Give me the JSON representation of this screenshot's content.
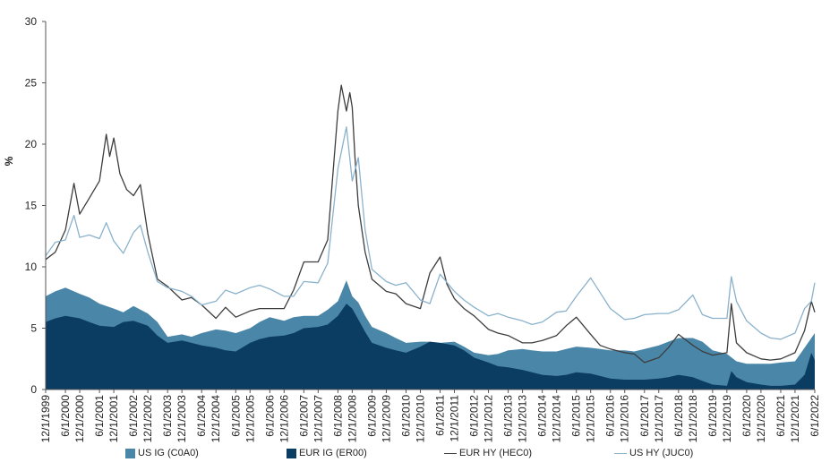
{
  "chart_data": {
    "type": "area",
    "ylabel": "%",
    "ylim": [
      0,
      30
    ],
    "yticks": [
      "0",
      "5",
      "10",
      "15",
      "20",
      "25",
      "30"
    ],
    "xticks": [
      "12/1/1999",
      "6/1/2000",
      "12/1/2000",
      "6/1/2001",
      "12/1/2001",
      "6/1/2002",
      "12/1/2002",
      "6/1/2003",
      "12/1/2003",
      "6/1/2004",
      "12/1/2004",
      "6/1/2005",
      "12/1/2005",
      "6/1/2006",
      "12/1/2006",
      "6/1/2007",
      "12/1/2007",
      "6/1/2008",
      "12/1/2008",
      "6/1/2009",
      "12/1/2009",
      "6/1/2010",
      "12/1/2010",
      "6/1/2011",
      "12/1/2011",
      "6/1/2012",
      "12/1/2012",
      "6/1/2013",
      "12/1/2013",
      "6/1/2014",
      "12/1/2014",
      "6/1/2015",
      "12/1/2015",
      "6/1/2016",
      "12/1/2016",
      "6/1/2017",
      "12/1/2017",
      "6/1/2018",
      "12/1/2018",
      "6/1/2019",
      "12/1/2019",
      "6/1/2020",
      "12/1/2020",
      "6/1/2021",
      "12/1/2021",
      "6/1/2022"
    ],
    "x": [
      1999.92,
      2000.5,
      2000.92,
      2001.5,
      2001.92,
      2002.5,
      2002.92,
      2003.5,
      2003.92,
      2004.5,
      2004.92,
      2005.5,
      2005.92,
      2006.5,
      2006.92,
      2007.5,
      2007.92,
      2008.5,
      2008.92,
      2009.5,
      2009.92,
      2010.5,
      2010.92,
      2011.5,
      2011.92,
      2012.5,
      2012.92,
      2013.5,
      2013.92,
      2014.5,
      2014.92,
      2015.5,
      2015.92,
      2016.5,
      2016.92,
      2017.5,
      2017.92,
      2018.5,
      2018.92,
      2019.5,
      2019.92,
      2020.5,
      2020.92,
      2021.5,
      2021.92,
      2022.5
    ],
    "legend_position": "bottom",
    "series": [
      {
        "name": "US IG (C0A0)",
        "style": "area",
        "color": "#4a86a8",
        "x": [
          1999.92,
          2000.2,
          2000.5,
          2000.92,
          2001.2,
          2001.5,
          2001.92,
          2002.2,
          2002.5,
          2002.92,
          2003.2,
          2003.5,
          2003.92,
          2004.2,
          2004.5,
          2004.92,
          2005.2,
          2005.5,
          2005.92,
          2006.2,
          2006.5,
          2006.92,
          2007.2,
          2007.5,
          2007.92,
          2008.2,
          2008.5,
          2008.75,
          2008.92,
          2009.1,
          2009.3,
          2009.5,
          2009.92,
          2010.2,
          2010.5,
          2010.92,
          2011.2,
          2011.5,
          2011.92,
          2012.2,
          2012.5,
          2012.92,
          2013.2,
          2013.5,
          2013.92,
          2014.2,
          2014.5,
          2014.92,
          2015.2,
          2015.5,
          2015.92,
          2016.2,
          2016.5,
          2016.92,
          2017.2,
          2017.5,
          2017.92,
          2018.2,
          2018.5,
          2018.92,
          2019.2,
          2019.5,
          2019.92,
          2020.2,
          2020.5,
          2020.92,
          2021.2,
          2021.5,
          2021.92,
          2022.2,
          2022.5
        ],
        "values": [
          7.6,
          8.0,
          8.3,
          7.8,
          7.5,
          7.0,
          6.6,
          6.3,
          6.8,
          6.2,
          5.5,
          4.3,
          4.5,
          4.3,
          4.6,
          4.9,
          4.8,
          4.6,
          5.0,
          5.5,
          5.9,
          5.6,
          5.9,
          6.0,
          6.0,
          6.5,
          7.2,
          8.9,
          7.6,
          7.1,
          6.0,
          5.1,
          4.6,
          4.2,
          3.8,
          3.9,
          3.9,
          3.8,
          3.9,
          3.5,
          3.0,
          2.8,
          2.9,
          3.2,
          3.3,
          3.2,
          3.1,
          3.1,
          3.3,
          3.5,
          3.4,
          3.3,
          3.2,
          3.2,
          3.1,
          3.3,
          3.6,
          3.9,
          4.2,
          4.2,
          3.9,
          3.2,
          2.9,
          2.3,
          2.1,
          2.1,
          2.1,
          2.2,
          2.3,
          3.4,
          4.6
        ]
      },
      {
        "name": "EUR IG (ER00)",
        "style": "area",
        "color": "#0b3d63",
        "x": [
          1999.92,
          2000.2,
          2000.5,
          2000.92,
          2001.2,
          2001.5,
          2001.92,
          2002.2,
          2002.5,
          2002.92,
          2003.2,
          2003.5,
          2003.92,
          2004.2,
          2004.5,
          2004.92,
          2005.2,
          2005.5,
          2005.92,
          2006.2,
          2006.5,
          2006.92,
          2007.2,
          2007.5,
          2007.92,
          2008.2,
          2008.5,
          2008.75,
          2008.92,
          2009.1,
          2009.3,
          2009.5,
          2009.92,
          2010.2,
          2010.5,
          2010.92,
          2011.2,
          2011.5,
          2011.92,
          2012.2,
          2012.5,
          2012.92,
          2013.2,
          2013.5,
          2013.92,
          2014.2,
          2014.5,
          2014.92,
          2015.2,
          2015.5,
          2015.92,
          2016.2,
          2016.5,
          2016.92,
          2017.2,
          2017.5,
          2017.92,
          2018.2,
          2018.5,
          2018.92,
          2019.2,
          2019.5,
          2019.92,
          2020.05,
          2020.2,
          2020.5,
          2020.92,
          2021.2,
          2021.5,
          2021.92,
          2022.2,
          2022.4,
          2022.5
        ],
        "values": [
          5.5,
          5.8,
          6.0,
          5.8,
          5.5,
          5.2,
          5.1,
          5.5,
          5.6,
          5.2,
          4.4,
          3.8,
          4.0,
          3.8,
          3.6,
          3.4,
          3.2,
          3.1,
          3.8,
          4.1,
          4.3,
          4.4,
          4.6,
          5.0,
          5.1,
          5.3,
          6.0,
          7.0,
          6.6,
          5.7,
          4.7,
          3.8,
          3.4,
          3.2,
          3.0,
          3.5,
          3.9,
          3.8,
          3.6,
          3.2,
          2.6,
          2.2,
          1.9,
          1.8,
          1.6,
          1.4,
          1.2,
          1.1,
          1.2,
          1.4,
          1.3,
          1.1,
          0.9,
          0.8,
          0.8,
          0.8,
          0.9,
          1.0,
          1.2,
          1.0,
          0.7,
          0.4,
          0.3,
          1.5,
          1.0,
          0.6,
          0.4,
          0.3,
          0.3,
          0.4,
          1.2,
          3.0,
          2.4
        ]
      },
      {
        "name": "EUR HY (HEC0)",
        "style": "line",
        "color": "#3d3d3d",
        "x": [
          1999.92,
          2000.2,
          2000.5,
          2000.75,
          2000.92,
          2001.2,
          2001.5,
          2001.7,
          2001.8,
          2001.92,
          2002.1,
          2002.3,
          2002.5,
          2002.7,
          2002.92,
          2003.2,
          2003.5,
          2003.92,
          2004.2,
          2004.5,
          2004.92,
          2005.2,
          2005.5,
          2005.92,
          2006.2,
          2006.5,
          2006.92,
          2007.2,
          2007.5,
          2007.92,
          2008.2,
          2008.5,
          2008.6,
          2008.75,
          2008.85,
          2008.92,
          2009.0,
          2009.1,
          2009.3,
          2009.5,
          2009.92,
          2010.2,
          2010.5,
          2010.92,
          2011.2,
          2011.5,
          2011.7,
          2011.92,
          2012.2,
          2012.5,
          2012.92,
          2013.2,
          2013.5,
          2013.92,
          2014.2,
          2014.5,
          2014.92,
          2015.2,
          2015.5,
          2015.92,
          2016.2,
          2016.5,
          2016.92,
          2017.2,
          2017.5,
          2017.92,
          2018.2,
          2018.5,
          2018.92,
          2019.2,
          2019.5,
          2019.92,
          2020.05,
          2020.2,
          2020.5,
          2020.92,
          2021.2,
          2021.5,
          2021.92,
          2022.2,
          2022.4,
          2022.5
        ],
        "values": [
          10.6,
          11.2,
          13.0,
          16.8,
          14.3,
          15.6,
          17.0,
          20.8,
          19.0,
          20.5,
          17.6,
          16.3,
          15.8,
          16.7,
          12.7,
          9.0,
          8.4,
          7.3,
          7.5,
          6.9,
          5.8,
          6.7,
          5.9,
          6.4,
          6.6,
          6.6,
          6.6,
          8.1,
          10.4,
          10.4,
          12.2,
          22.7,
          24.8,
          22.7,
          24.2,
          23.0,
          19.0,
          15.0,
          11.2,
          9.0,
          8.0,
          7.8,
          7.0,
          6.6,
          9.5,
          10.8,
          8.6,
          7.4,
          6.6,
          6.0,
          4.9,
          4.6,
          4.4,
          3.8,
          3.8,
          4.0,
          4.4,
          5.2,
          5.9,
          4.5,
          3.6,
          3.3,
          3.0,
          2.9,
          2.2,
          2.6,
          3.4,
          4.5,
          3.6,
          3.1,
          2.8,
          3.0,
          7.0,
          3.8,
          3.0,
          2.5,
          2.4,
          2.5,
          3.0,
          4.8,
          7.2,
          6.3
        ]
      },
      {
        "name": "US HY (JUC0)",
        "style": "line",
        "color": "#8ab2cc",
        "x": [
          1999.92,
          2000.2,
          2000.5,
          2000.75,
          2000.92,
          2001.2,
          2001.5,
          2001.7,
          2001.92,
          2002.2,
          2002.5,
          2002.7,
          2002.92,
          2003.2,
          2003.5,
          2003.92,
          2004.2,
          2004.5,
          2004.92,
          2005.2,
          2005.5,
          2005.92,
          2006.2,
          2006.5,
          2006.92,
          2007.2,
          2007.5,
          2007.92,
          2008.2,
          2008.5,
          2008.75,
          2008.92,
          2009.1,
          2009.3,
          2009.5,
          2009.92,
          2010.2,
          2010.5,
          2010.92,
          2011.2,
          2011.5,
          2011.92,
          2012.2,
          2012.5,
          2012.92,
          2013.2,
          2013.5,
          2013.92,
          2014.2,
          2014.5,
          2014.92,
          2015.2,
          2015.5,
          2015.92,
          2016.2,
          2016.5,
          2016.92,
          2017.2,
          2017.5,
          2017.92,
          2018.2,
          2018.5,
          2018.92,
          2019.2,
          2019.5,
          2019.92,
          2020.05,
          2020.2,
          2020.5,
          2020.92,
          2021.2,
          2021.5,
          2021.92,
          2022.2,
          2022.4,
          2022.5
        ],
        "values": [
          10.9,
          12.0,
          12.2,
          14.2,
          12.4,
          12.6,
          12.3,
          13.6,
          12.1,
          11.1,
          12.8,
          13.4,
          11.2,
          8.8,
          8.3,
          8.0,
          7.6,
          6.9,
          7.2,
          8.1,
          7.8,
          8.3,
          8.5,
          8.2,
          7.6,
          7.6,
          8.8,
          8.7,
          10.3,
          18.0,
          21.4,
          17.0,
          18.9,
          13.0,
          9.8,
          8.8,
          8.5,
          8.7,
          7.3,
          7.0,
          9.4,
          8.0,
          7.3,
          6.7,
          6.0,
          6.2,
          5.9,
          5.6,
          5.3,
          5.5,
          6.3,
          6.4,
          7.6,
          9.1,
          7.9,
          6.6,
          5.7,
          5.8,
          6.1,
          6.2,
          6.2,
          6.5,
          7.7,
          6.1,
          5.8,
          5.8,
          9.2,
          7.2,
          5.6,
          4.6,
          4.2,
          4.1,
          4.6,
          6.6,
          7.2,
          8.7
        ]
      }
    ]
  },
  "legend": {
    "items": [
      {
        "label": "US IG (C0A0)",
        "color": "#4a86a8"
      },
      {
        "label": "EUR IG (ER00)",
        "color": "#0b3d63"
      },
      {
        "label": "EUR HY (HEC0)",
        "color": "#3d3d3d"
      },
      {
        "label": "US HY (JUC0)",
        "color": "#8ab2cc"
      }
    ]
  }
}
